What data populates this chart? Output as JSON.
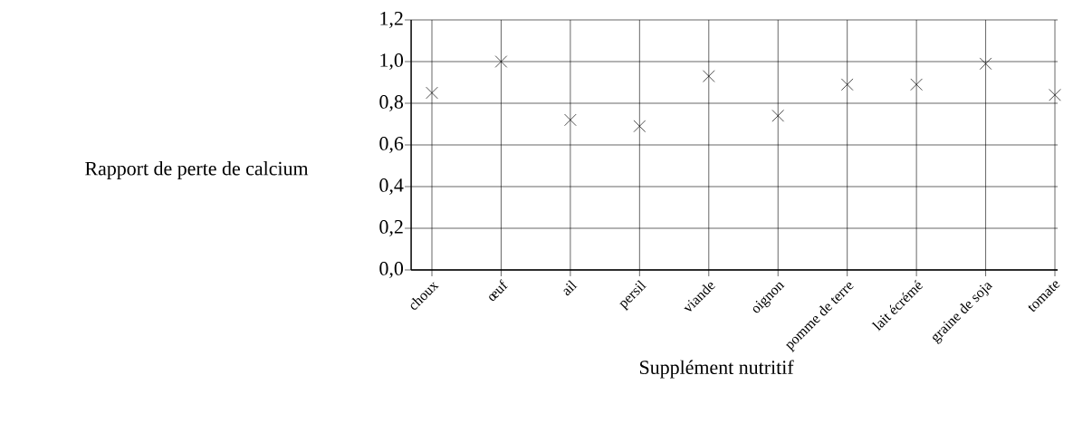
{
  "chart_data": {
    "type": "scatter",
    "xlabel": "Supplément nutritif",
    "ylabel": "Rapport de perte de calcium",
    "categories": [
      "choux",
      "œuf",
      "ail",
      "persil",
      "viande",
      "oignon",
      "pomme de terre",
      "lait écrémé",
      "graine de soja",
      "tomate"
    ],
    "values": [
      0.85,
      1.0,
      0.72,
      0.69,
      0.93,
      0.74,
      0.89,
      0.89,
      0.99,
      0.84
    ],
    "color": "#000000",
    "marker": "cross",
    "grid": true,
    "ylim": [
      0,
      1.2
    ],
    "yticks": [
      {
        "value": 0,
        "label": "0,0"
      },
      {
        "value": 0.2,
        "label": "0,2"
      },
      {
        "value": 0.4,
        "label": "0,4"
      },
      {
        "value": 0.6,
        "label": "0,6"
      },
      {
        "value": 0.8,
        "label": "0,8"
      },
      {
        "value": 1.0,
        "label": "1,0"
      },
      {
        "value": 1.2,
        "label": "1,2"
      }
    ]
  }
}
